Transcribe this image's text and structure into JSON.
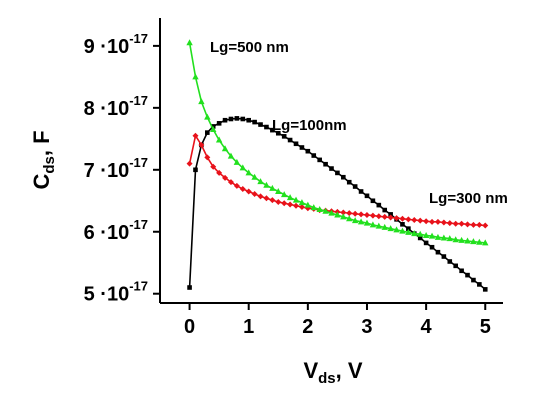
{
  "chart_data": {
    "type": "line",
    "title": "",
    "xlabel": "Vds, V",
    "ylabel": "Cds, F",
    "xlim": [
      -0.5,
      5.3
    ],
    "ylim": [
      4.85e-17,
      9.45e-17
    ],
    "x_ticks": [
      0,
      1,
      2,
      3,
      4,
      5
    ],
    "x_tick_labels": [
      "0",
      "1",
      "2",
      "3",
      "4",
      "5"
    ],
    "y_ticks": [
      5e-17,
      6e-17,
      7e-17,
      8e-17,
      9e-17
    ],
    "y_tick_labels": [
      {
        "mantissa": "5",
        "base": "10",
        "exp": "-17"
      },
      {
        "mantissa": "6",
        "base": "10",
        "exp": "-17"
      },
      {
        "mantissa": "7",
        "base": "10",
        "exp": "-17"
      },
      {
        "mantissa": "8",
        "base": "10",
        "exp": "-17"
      },
      {
        "mantissa": "9",
        "base": "10",
        "exp": "-17"
      }
    ],
    "grid": false,
    "series": [
      {
        "name": "Lg=100nm",
        "color": "#000000",
        "marker": "square",
        "x": [
          0,
          0.1,
          0.2,
          0.3,
          0.4,
          0.5,
          0.6,
          0.7,
          0.8,
          0.9,
          1.0,
          1.1,
          1.2,
          1.3,
          1.4,
          1.5,
          1.6,
          1.7,
          1.8,
          1.9,
          2.0,
          2.1,
          2.2,
          2.3,
          2.4,
          2.5,
          2.6,
          2.7,
          2.8,
          2.9,
          3.0,
          3.1,
          3.2,
          3.3,
          3.4,
          3.5,
          3.6,
          3.7,
          3.8,
          3.9,
          4.0,
          4.1,
          4.2,
          4.3,
          4.4,
          4.5,
          4.6,
          4.7,
          4.8,
          4.9,
          5.0
        ],
        "y": [
          5.1e-17,
          7e-17,
          7.4e-17,
          7.6e-17,
          7.7e-17,
          7.75e-17,
          7.8e-17,
          7.82e-17,
          7.83e-17,
          7.82e-17,
          7.8e-17,
          7.77e-17,
          7.73e-17,
          7.69e-17,
          7.64e-17,
          7.59e-17,
          7.54e-17,
          7.48e-17,
          7.42e-17,
          7.36e-17,
          7.3e-17,
          7.23e-17,
          7.16e-17,
          7.09e-17,
          7.02e-17,
          6.95e-17,
          6.88e-17,
          6.8e-17,
          6.73e-17,
          6.65e-17,
          6.58e-17,
          6.5e-17,
          6.43e-17,
          6.35e-17,
          6.28e-17,
          6.2e-17,
          6.12e-17,
          6.05e-17,
          5.97e-17,
          5.9e-17,
          5.82e-17,
          5.75e-17,
          5.67e-17,
          5.6e-17,
          5.52e-17,
          5.45e-17,
          5.37e-17,
          5.3e-17,
          5.22e-17,
          5.15e-17,
          5.07e-17
        ]
      },
      {
        "name": "Lg=300 nm",
        "color": "#e8121a",
        "marker": "diamond",
        "x": [
          0,
          0.1,
          0.2,
          0.3,
          0.4,
          0.5,
          0.6,
          0.7,
          0.8,
          0.9,
          1.0,
          1.1,
          1.2,
          1.3,
          1.4,
          1.5,
          1.6,
          1.7,
          1.8,
          1.9,
          2.0,
          2.1,
          2.2,
          2.3,
          2.4,
          2.5,
          2.6,
          2.7,
          2.8,
          2.9,
          3.0,
          3.1,
          3.2,
          3.3,
          3.4,
          3.5,
          3.6,
          3.7,
          3.8,
          3.9,
          4.0,
          4.1,
          4.2,
          4.3,
          4.4,
          4.5,
          4.6,
          4.7,
          4.8,
          4.9,
          5.0
        ],
        "y": [
          7.1e-17,
          7.55e-17,
          7.4e-17,
          7.2e-17,
          7.05e-17,
          6.95e-17,
          6.87e-17,
          6.8e-17,
          6.74e-17,
          6.69e-17,
          6.65e-17,
          6.61e-17,
          6.57e-17,
          6.54e-17,
          6.51e-17,
          6.48e-17,
          6.46e-17,
          6.44e-17,
          6.42e-17,
          6.4e-17,
          6.38e-17,
          6.37e-17,
          6.35e-17,
          6.34e-17,
          6.33e-17,
          6.32e-17,
          6.31e-17,
          6.3e-17,
          6.29e-17,
          6.28e-17,
          6.27e-17,
          6.26e-17,
          6.25e-17,
          6.24e-17,
          6.23e-17,
          6.22e-17,
          6.21e-17,
          6.2e-17,
          6.19e-17,
          6.18e-17,
          6.17e-17,
          6.16e-17,
          6.16e-17,
          6.15e-17,
          6.14e-17,
          6.13e-17,
          6.13e-17,
          6.12e-17,
          6.11e-17,
          6.11e-17,
          6.1e-17
        ]
      },
      {
        "name": "Lg=500 nm",
        "color": "#22e01e",
        "marker": "triangle",
        "x": [
          0,
          0.1,
          0.2,
          0.3,
          0.4,
          0.5,
          0.6,
          0.7,
          0.8,
          0.9,
          1.0,
          1.1,
          1.2,
          1.3,
          1.4,
          1.5,
          1.6,
          1.7,
          1.8,
          1.9,
          2.0,
          2.1,
          2.2,
          2.3,
          2.4,
          2.5,
          2.6,
          2.7,
          2.8,
          2.9,
          3.0,
          3.1,
          3.2,
          3.3,
          3.4,
          3.5,
          3.6,
          3.7,
          3.8,
          3.9,
          4.0,
          4.1,
          4.2,
          4.3,
          4.4,
          4.5,
          4.6,
          4.7,
          4.8,
          4.9,
          5.0
        ],
        "y": [
          9.05e-17,
          8.5e-17,
          8.1e-17,
          7.85e-17,
          7.65e-17,
          7.48e-17,
          7.34e-17,
          7.22e-17,
          7.12e-17,
          7.03e-17,
          6.95e-17,
          6.88e-17,
          6.81e-17,
          6.75e-17,
          6.7e-17,
          6.65e-17,
          6.6e-17,
          6.55e-17,
          6.51e-17,
          6.47e-17,
          6.43e-17,
          6.39e-17,
          6.36e-17,
          6.33e-17,
          6.3e-17,
          6.27e-17,
          6.24e-17,
          6.21e-17,
          6.18e-17,
          6.16e-17,
          6.14e-17,
          6.11e-17,
          6.09e-17,
          6.07e-17,
          6.05e-17,
          6.03e-17,
          6.01e-17,
          5.99e-17,
          5.97e-17,
          5.96e-17,
          5.94e-17,
          5.93e-17,
          5.91e-17,
          5.9e-17,
          5.89e-17,
          5.87e-17,
          5.86e-17,
          5.85e-17,
          5.84e-17,
          5.83e-17,
          5.82e-17
        ]
      }
    ]
  }
}
